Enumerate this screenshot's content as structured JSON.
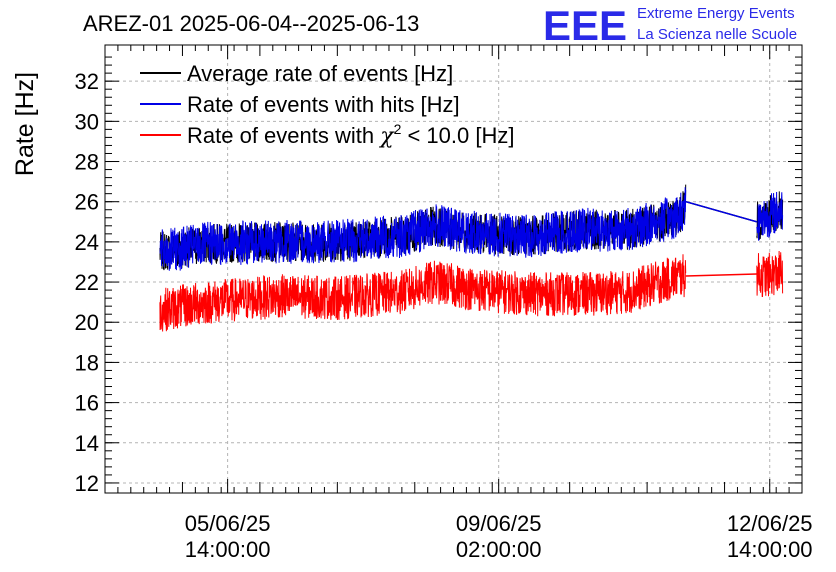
{
  "header": {
    "title": "AREZ-01 2025-06-04--2025-06-13",
    "logo_text": "EEE",
    "logo_line1": "Extreme Energy Events",
    "logo_line2": "La Scienza nelle Scuole"
  },
  "colors": {
    "black": "#000000",
    "blue": "#0000e6",
    "red": "#ff0000",
    "logo": "#2a2ae8",
    "grid": "#b4b4b4"
  },
  "chart_data": {
    "type": "line",
    "ylabel": "Rate [Hz]",
    "xlabel": "",
    "ylim": [
      11.5,
      33.8
    ],
    "xlim_days": [
      0,
      9
    ],
    "grid": true,
    "legend_placement": "top-left",
    "yticks": [
      12,
      14,
      16,
      18,
      20,
      22,
      24,
      26,
      28,
      30,
      32
    ],
    "xticks": [
      {
        "date": "2025-06-05 14:00:00",
        "line1": "05/06/25",
        "line2": "14:00:00"
      },
      {
        "date": "2025-06-09 02:00:00",
        "line1": "09/06/25",
        "line2": "02:00:00"
      },
      {
        "date": "2025-06-12 14:00:00",
        "line1": "12/06/25",
        "line2": "14:00:00"
      }
    ],
    "legend": [
      {
        "series": "average",
        "label": "Average rate of events [Hz]"
      },
      {
        "series": "hits",
        "label": "Rate of events with hits [Hz]"
      },
      {
        "series": "chi2",
        "label_pre": "Rate of events with ",
        "label_chi": "χ",
        "label_sup": "2",
        "label_post": " < 10.0 [Hz]"
      }
    ],
    "series": [
      {
        "key": "average",
        "x": [
          "2025-06-04 17:00",
          "2025-06-05 08:00",
          "2025-06-06 06:00",
          "2025-06-07 00:00",
          "2025-06-07 20:00",
          "2025-06-08 06:00",
          "2025-06-08 20:00",
          "2025-06-09 12:00",
          "2025-06-10 04:00",
          "2025-06-10 18:00",
          "2025-06-11 10:00",
          "2025-06-11 12:00",
          "2025-06-12 10:00",
          "2025-06-12 12:00",
          "2025-06-12 18:00"
        ],
        "y": [
          23.5,
          23.9,
          24.0,
          24.0,
          24.3,
          24.8,
          24.4,
          24.3,
          24.6,
          24.6,
          25.3,
          26.0,
          25.0,
          25.2,
          25.6
        ],
        "noise": 1.0
      },
      {
        "key": "hits",
        "x": [
          "2025-06-04 17:00",
          "2025-06-05 08:00",
          "2025-06-06 06:00",
          "2025-06-07 00:00",
          "2025-06-07 20:00",
          "2025-06-08 06:00",
          "2025-06-08 20:00",
          "2025-06-09 12:00",
          "2025-06-10 04:00",
          "2025-06-10 18:00",
          "2025-06-11 10:00",
          "2025-06-11 12:00",
          "2025-06-12 10:00",
          "2025-06-12 12:00",
          "2025-06-12 18:00"
        ],
        "y": [
          23.5,
          23.9,
          24.0,
          24.0,
          24.3,
          24.8,
          24.4,
          24.3,
          24.6,
          24.6,
          25.3,
          26.0,
          25.0,
          25.2,
          25.6
        ],
        "noise": 1.1
      },
      {
        "key": "chi2",
        "x": [
          "2025-06-04 17:00",
          "2025-06-05 08:00",
          "2025-06-06 06:00",
          "2025-06-07 00:00",
          "2025-06-07 20:00",
          "2025-06-08 06:00",
          "2025-06-08 20:00",
          "2025-06-09 12:00",
          "2025-06-10 04:00",
          "2025-06-10 18:00",
          "2025-06-11 10:00",
          "2025-06-11 12:00",
          "2025-06-12 10:00",
          "2025-06-12 12:00",
          "2025-06-12 18:00"
        ],
        "y": [
          20.6,
          21.0,
          21.3,
          21.2,
          21.5,
          22.0,
          21.6,
          21.4,
          21.4,
          21.5,
          22.3,
          22.3,
          22.4,
          22.3,
          22.5
        ],
        "noise": 1.1
      }
    ],
    "gap_between": [
      "2025-06-11 12:00",
      "2025-06-12 10:00"
    ]
  }
}
